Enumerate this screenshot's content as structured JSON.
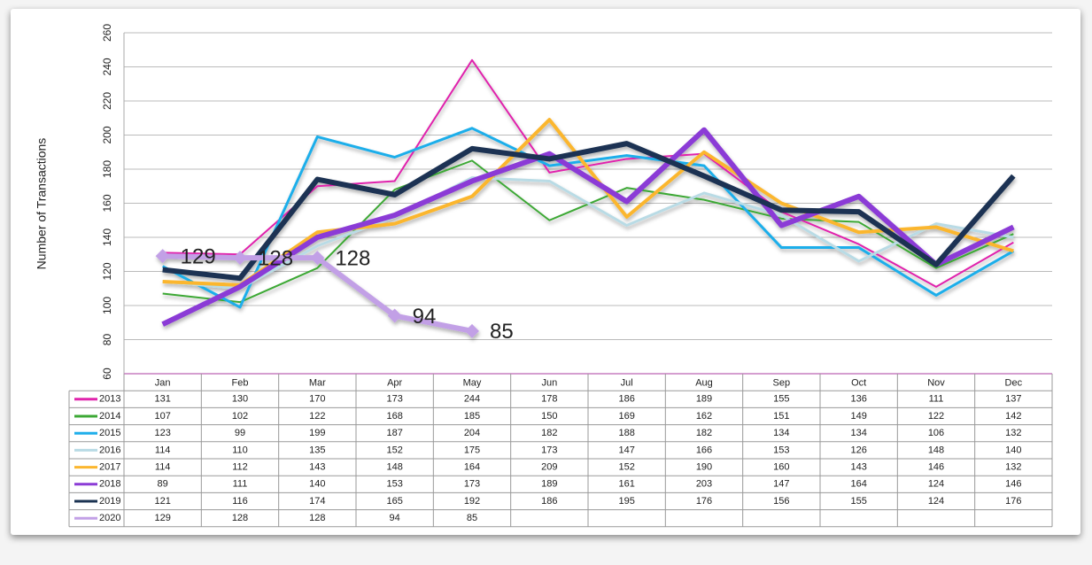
{
  "chart_data": {
    "type": "line",
    "y_label": "Number of Transactions",
    "categories": [
      "Jan",
      "Feb",
      "Mar",
      "Apr",
      "May",
      "Jun",
      "Jul",
      "Aug",
      "Sep",
      "Oct",
      "Nov",
      "Dec"
    ],
    "ylim": [
      60,
      260
    ],
    "yticks": [
      60,
      80,
      100,
      120,
      140,
      160,
      180,
      200,
      220,
      240,
      260
    ],
    "grid": true,
    "series": [
      {
        "name": "2013",
        "color": "#e024ac",
        "values": [
          131,
          130,
          170,
          173,
          244,
          178,
          186,
          189,
          155,
          136,
          111,
          137
        ]
      },
      {
        "name": "2014",
        "color": "#3ca835",
        "values": [
          107,
          102,
          122,
          168,
          185,
          150,
          169,
          162,
          151,
          149,
          122,
          142
        ]
      },
      {
        "name": "2015",
        "color": "#1eaeea",
        "values": [
          123,
          99,
          199,
          187,
          204,
          182,
          188,
          182,
          134,
          134,
          106,
          132
        ]
      },
      {
        "name": "2016",
        "color": "#b9dbe5",
        "values": [
          114,
          110,
          135,
          152,
          175,
          173,
          147,
          166,
          153,
          126,
          148,
          140
        ]
      },
      {
        "name": "2017",
        "color": "#fbb62e",
        "values": [
          114,
          112,
          143,
          148,
          164,
          209,
          152,
          190,
          160,
          143,
          146,
          132
        ]
      },
      {
        "name": "2018",
        "color": "#8b3bd6",
        "values": [
          89,
          111,
          140,
          153,
          173,
          189,
          161,
          203,
          147,
          164,
          124,
          146
        ]
      },
      {
        "name": "2019",
        "color": "#1b3352",
        "values": [
          121,
          116,
          174,
          165,
          192,
          186,
          195,
          176,
          156,
          155,
          124,
          176
        ]
      },
      {
        "name": "2020",
        "color": "#c2a0e6",
        "marker": "diamond",
        "data_labels": true,
        "values": [
          129,
          128,
          128,
          94,
          85,
          null,
          null,
          null,
          null,
          null,
          null,
          null
        ]
      }
    ]
  }
}
